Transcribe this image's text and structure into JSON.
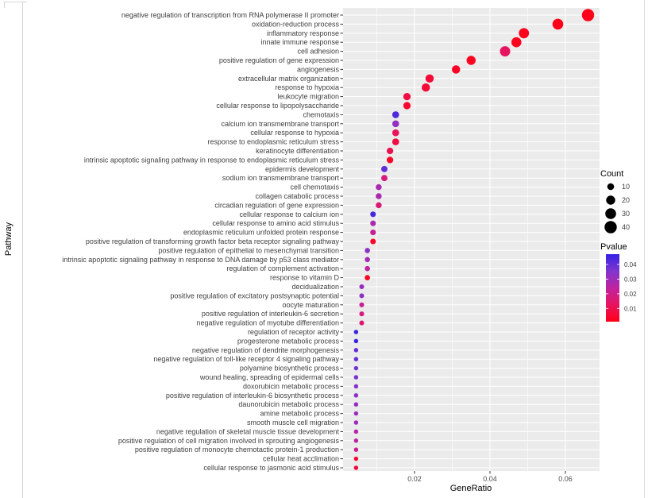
{
  "colors": {
    "background": "#ffffff",
    "panel_bg": "#ebebeb",
    "gridline": "#ffffff",
    "tick": "#333333",
    "axis_text": "#4d4d4d",
    "title_text": "#000000",
    "legend_dot": "#000000",
    "frame_line": "#d5d5d5"
  },
  "chart_data": {
    "type": "scatter",
    "subtype": "go-enrichment-dotplot",
    "title": "",
    "xlabel": "GeneRatio",
    "ylabel": "Pathway",
    "x_ticks": [
      0.02,
      0.04,
      0.06
    ],
    "xlim": [
      0.001,
      0.069
    ],
    "grid": "on",
    "legend": {
      "position": "right",
      "count": {
        "title": "Count",
        "values": [
          10,
          20,
          30,
          40
        ]
      },
      "pvalue": {
        "title": "Pvalue",
        "ticks": [
          0.04,
          0.03,
          0.02,
          0.01
        ],
        "scale_min": 0.001,
        "scale_max": 0.047,
        "stops": [
          {
            "t": 0,
            "color": "#FF0018"
          },
          {
            "t": 0.25,
            "color": "#E8145E"
          },
          {
            "t": 0.5,
            "color": "#C023A0"
          },
          {
            "t": 0.75,
            "color": "#7F35CE"
          },
          {
            "t": 1,
            "color": "#3522E4"
          }
        ]
      }
    },
    "points": [
      {
        "pathway": "negative regulation of transcription from RNA polymerase II promoter",
        "gene_ratio": 0.066,
        "count": 40,
        "pvalue": 0.001
      },
      {
        "pathway": "oxidation-reduction process",
        "gene_ratio": 0.058,
        "count": 30,
        "pvalue": 0.001
      },
      {
        "pathway": "inflammatory response",
        "gene_ratio": 0.049,
        "count": 26,
        "pvalue": 0.002
      },
      {
        "pathway": "innate immune response",
        "gene_ratio": 0.047,
        "count": 25,
        "pvalue": 0.002
      },
      {
        "pathway": "cell adhesion",
        "gene_ratio": 0.044,
        "count": 27,
        "pvalue": 0.013
      },
      {
        "pathway": "positive regulation of gene expression",
        "gene_ratio": 0.035,
        "count": 20,
        "pvalue": 0.002
      },
      {
        "pathway": "angiogenesis",
        "gene_ratio": 0.031,
        "count": 16,
        "pvalue": 0.003
      },
      {
        "pathway": "extracellular matrix organization",
        "gene_ratio": 0.024,
        "count": 16,
        "pvalue": 0.006
      },
      {
        "pathway": "response to hypoxia",
        "gene_ratio": 0.023,
        "count": 16,
        "pvalue": 0.006
      },
      {
        "pathway": "leukocyte migration",
        "gene_ratio": 0.018,
        "count": 12,
        "pvalue": 0.008
      },
      {
        "pathway": "cellular response to lipopolysaccharide",
        "gene_ratio": 0.018,
        "count": 12,
        "pvalue": 0.005
      },
      {
        "pathway": "chemotaxis",
        "gene_ratio": 0.015,
        "count": 10,
        "pvalue": 0.043
      },
      {
        "pathway": "calcium ion transmembrane transport",
        "gene_ratio": 0.015,
        "count": 10,
        "pvalue": 0.032
      },
      {
        "pathway": "cellular response to hypoxia",
        "gene_ratio": 0.015,
        "count": 10,
        "pvalue": 0.012
      },
      {
        "pathway": "response to endoplasmic reticulum stress",
        "gene_ratio": 0.015,
        "count": 10,
        "pvalue": 0.008
      },
      {
        "pathway": "keratinocyte differentiation",
        "gene_ratio": 0.0135,
        "count": 9,
        "pvalue": 0.01
      },
      {
        "pathway": "intrinsic apoptotic signaling pathway in response to endoplasmic reticulum stress",
        "gene_ratio": 0.0135,
        "count": 9,
        "pvalue": 0.004
      },
      {
        "pathway": "epidermis development",
        "gene_ratio": 0.012,
        "count": 8,
        "pvalue": 0.04
      },
      {
        "pathway": "sodium ion transmembrane transport",
        "gene_ratio": 0.012,
        "count": 8,
        "pvalue": 0.018
      },
      {
        "pathway": "cell chemotaxis",
        "gene_ratio": 0.0105,
        "count": 7,
        "pvalue": 0.028
      },
      {
        "pathway": "collagen catabolic process",
        "gene_ratio": 0.0105,
        "count": 7,
        "pvalue": 0.028
      },
      {
        "pathway": "circadian regulation of gene expression",
        "gene_ratio": 0.0105,
        "count": 7,
        "pvalue": 0.016
      },
      {
        "pathway": "cellular response to calcium ion",
        "gene_ratio": 0.009,
        "count": 6,
        "pvalue": 0.044
      },
      {
        "pathway": "cellular response to amino acid stimulus",
        "gene_ratio": 0.009,
        "count": 6,
        "pvalue": 0.028
      },
      {
        "pathway": "endoplasmic reticulum unfolded protein response",
        "gene_ratio": 0.009,
        "count": 6,
        "pvalue": 0.022
      },
      {
        "pathway": "positive regulation of transforming growth factor beta receptor signaling pathway",
        "gene_ratio": 0.009,
        "count": 6,
        "pvalue": 0.004
      },
      {
        "pathway": "positive regulation of epithelial to mesenchymal transition",
        "gene_ratio": 0.0075,
        "count": 5,
        "pvalue": 0.033
      },
      {
        "pathway": "intrinsic apoptotic signaling pathway in response to DNA damage by p53 class mediator",
        "gene_ratio": 0.0075,
        "count": 5,
        "pvalue": 0.029
      },
      {
        "pathway": "regulation of complement activation",
        "gene_ratio": 0.0075,
        "count": 5,
        "pvalue": 0.024
      },
      {
        "pathway": "response to vitamin D",
        "gene_ratio": 0.0075,
        "count": 5,
        "pvalue": 0.003
      },
      {
        "pathway": "decidualization",
        "gene_ratio": 0.006,
        "count": 4,
        "pvalue": 0.031
      },
      {
        "pathway": "positive regulation of excitatory postsynaptic potential",
        "gene_ratio": 0.006,
        "count": 4,
        "pvalue": 0.033
      },
      {
        "pathway": "oocyte maturation",
        "gene_ratio": 0.006,
        "count": 4,
        "pvalue": 0.022
      },
      {
        "pathway": "positive regulation of interleukin-6 secretion",
        "gene_ratio": 0.006,
        "count": 4,
        "pvalue": 0.018
      },
      {
        "pathway": "negative regulation of myotube differentiation",
        "gene_ratio": 0.006,
        "count": 4,
        "pvalue": 0.016
      },
      {
        "pathway": "regulation of receptor activity",
        "gene_ratio": 0.0045,
        "count": 3,
        "pvalue": 0.046
      },
      {
        "pathway": "progesterone metabolic process",
        "gene_ratio": 0.0045,
        "count": 3,
        "pvalue": 0.046
      },
      {
        "pathway": "negative regulation of dendrite morphogenesis",
        "gene_ratio": 0.0045,
        "count": 3,
        "pvalue": 0.039
      },
      {
        "pathway": "negative regulation of toll-like receptor 4 signaling pathway",
        "gene_ratio": 0.0045,
        "count": 3,
        "pvalue": 0.039
      },
      {
        "pathway": "polyamine biosynthetic process",
        "gene_ratio": 0.0045,
        "count": 3,
        "pvalue": 0.037
      },
      {
        "pathway": "wound healing, spreading of epidermal cells",
        "gene_ratio": 0.0045,
        "count": 3,
        "pvalue": 0.036
      },
      {
        "pathway": "doxorubicin metabolic process",
        "gene_ratio": 0.0045,
        "count": 3,
        "pvalue": 0.034
      },
      {
        "pathway": "positive regulation of interleukin-6 biosynthetic process",
        "gene_ratio": 0.0045,
        "count": 3,
        "pvalue": 0.033
      },
      {
        "pathway": "daunorubicin metabolic process",
        "gene_ratio": 0.0045,
        "count": 3,
        "pvalue": 0.032
      },
      {
        "pathway": "amine metabolic process",
        "gene_ratio": 0.0045,
        "count": 3,
        "pvalue": 0.031
      },
      {
        "pathway": "smooth muscle cell migration",
        "gene_ratio": 0.0045,
        "count": 3,
        "pvalue": 0.03
      },
      {
        "pathway": "negative regulation of skeletal muscle tissue development",
        "gene_ratio": 0.0045,
        "count": 3,
        "pvalue": 0.026
      },
      {
        "pathway": "positive regulation of cell migration involved in sprouting angiogenesis",
        "gene_ratio": 0.0045,
        "count": 3,
        "pvalue": 0.025
      },
      {
        "pathway": "positive regulation of monocyte chemotactic protein-1 production",
        "gene_ratio": 0.0045,
        "count": 3,
        "pvalue": 0.021
      },
      {
        "pathway": "cellular heat acclimation",
        "gene_ratio": 0.0045,
        "count": 3,
        "pvalue": 0.006
      },
      {
        "pathway": "cellular response to jasmonic acid stimulus",
        "gene_ratio": 0.0045,
        "count": 3,
        "pvalue": 0.007
      }
    ]
  }
}
